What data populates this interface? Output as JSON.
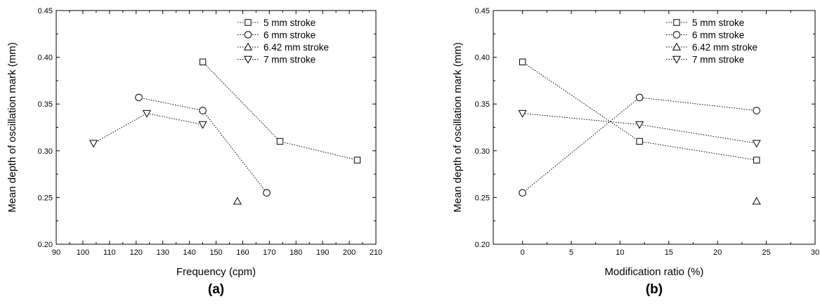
{
  "chart_data": [
    {
      "type": "scatter",
      "panel_label": "(a)",
      "xlabel": "Frequency (cpm)",
      "ylabel": "Mean depth of oscillation mark (mm)",
      "xlim": [
        90,
        210
      ],
      "ylim": [
        0.2,
        0.45
      ],
      "x_ticks": [
        "90",
        "100",
        "110",
        "120",
        "130",
        "140",
        "150",
        "160",
        "170",
        "180",
        "190",
        "200",
        "210"
      ],
      "y_ticks": [
        "0.20",
        "0.25",
        "0.30",
        "0.35",
        "0.40",
        "0.45"
      ],
      "grid": false,
      "legend_position": "top-right",
      "series": [
        {
          "name": "5 mm stroke",
          "marker": "square",
          "points": [
            [
              145,
              0.395
            ],
            [
              174,
              0.31
            ],
            [
              203,
              0.29
            ]
          ]
        },
        {
          "name": "6 mm stroke",
          "marker": "circle",
          "points": [
            [
              121,
              0.357
            ],
            [
              145,
              0.343
            ],
            [
              169,
              0.255
            ]
          ]
        },
        {
          "name": "6.42 mm stroke",
          "marker": "triangle-up",
          "points": [
            [
              158,
              0.246
            ]
          ]
        },
        {
          "name": "7 mm stroke",
          "marker": "triangle-down",
          "points": [
            [
              104,
              0.308
            ],
            [
              124,
              0.34
            ],
            [
              145,
              0.328
            ]
          ]
        }
      ]
    },
    {
      "type": "scatter",
      "panel_label": "(b)",
      "xlabel": "Modification ratio (%)",
      "ylabel": "Mean depth of oscillation mark  (mm)",
      "xlim": [
        -3,
        30
      ],
      "ylim": [
        0.2,
        0.45
      ],
      "x_ticks": [
        "0",
        "5",
        "10",
        "15",
        "20",
        "25",
        "30"
      ],
      "y_ticks": [
        "0.20",
        "0.25",
        "0.30",
        "0.35",
        "0.40",
        "0.45"
      ],
      "grid": false,
      "legend_position": "top-right",
      "series": [
        {
          "name": "5 mm stroke",
          "marker": "square",
          "points": [
            [
              0,
              0.395
            ],
            [
              12,
              0.31
            ],
            [
              24,
              0.29
            ]
          ]
        },
        {
          "name": "6 mm stroke",
          "marker": "circle",
          "points": [
            [
              0,
              0.255
            ],
            [
              12,
              0.357
            ],
            [
              24,
              0.343
            ]
          ]
        },
        {
          "name": "6.42 mm stroke",
          "marker": "triangle-up",
          "points": [
            [
              24,
              0.246
            ]
          ]
        },
        {
          "name": "7 mm stroke",
          "marker": "triangle-down",
          "points": [
            [
              0,
              0.34
            ],
            [
              12,
              0.328
            ],
            [
              24,
              0.308
            ]
          ]
        }
      ]
    }
  ]
}
